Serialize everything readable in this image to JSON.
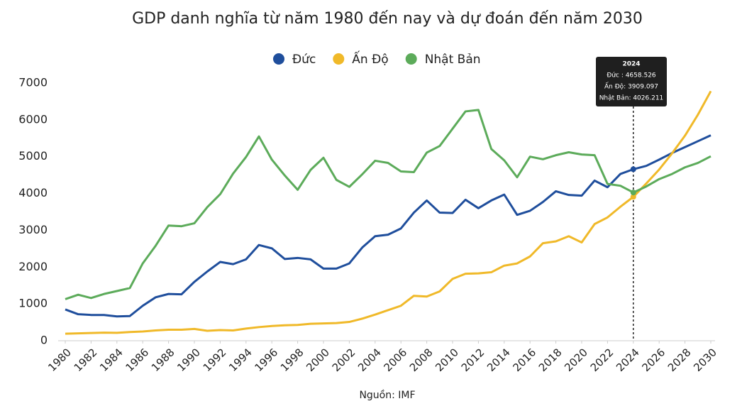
{
  "chart_data": {
    "type": "line",
    "title": "GDP danh nghĩa từ năm 1980 đến nay và dự đoán đến năm 2030",
    "source": "Nguồn: IMF",
    "legend": "top",
    "x": [
      1980,
      1981,
      1982,
      1983,
      1984,
      1985,
      1986,
      1987,
      1988,
      1989,
      1990,
      1991,
      1992,
      1993,
      1994,
      1995,
      1996,
      1997,
      1998,
      1999,
      2000,
      2001,
      2002,
      2003,
      2004,
      2005,
      2006,
      2007,
      2008,
      2009,
      2010,
      2011,
      2012,
      2013,
      2014,
      2015,
      2016,
      2017,
      2018,
      2019,
      2020,
      2021,
      2022,
      2023,
      2024,
      2025,
      2026,
      2027,
      2028,
      2029,
      2030
    ],
    "xlim": [
      1980,
      2030
    ],
    "xticks": [
      1980,
      1982,
      1984,
      1986,
      1988,
      1990,
      1992,
      1994,
      1996,
      1998,
      2000,
      2002,
      2004,
      2006,
      2008,
      2010,
      2012,
      2014,
      2016,
      2018,
      2020,
      2022,
      2024,
      2026,
      2028,
      2030
    ],
    "ylim": [
      0,
      7000
    ],
    "yticks": [
      0,
      1000,
      2000,
      3000,
      4000,
      5000,
      6000,
      7000
    ],
    "series": [
      {
        "name": "Đức",
        "color": "#1f4e9c",
        "values": [
          850,
          720,
          700,
          700,
          660,
          670,
          950,
          1180,
          1270,
          1260,
          1600,
          1880,
          2140,
          2080,
          2210,
          2600,
          2510,
          2220,
          2250,
          2210,
          1960,
          1960,
          2100,
          2530,
          2840,
          2880,
          3050,
          3480,
          3810,
          3480,
          3470,
          3830,
          3600,
          3810,
          3970,
          3420,
          3530,
          3770,
          4060,
          3960,
          3940,
          4350,
          4170,
          4530,
          4658.526,
          4750,
          4920,
          5100,
          5260,
          5420,
          5580
        ]
      },
      {
        "name": "Ấn Độ",
        "color": "#f0b929",
        "values": [
          190,
          200,
          210,
          220,
          215,
          235,
          250,
          280,
          300,
          300,
          320,
          270,
          290,
          280,
          330,
          370,
          400,
          420,
          430,
          460,
          470,
          480,
          510,
          600,
          710,
          830,
          950,
          1220,
          1200,
          1340,
          1680,
          1820,
          1830,
          1860,
          2040,
          2100,
          2290,
          2650,
          2700,
          2840,
          2670,
          3170,
          3350,
          3640,
          3909.097,
          4270,
          4650,
          5090,
          5570,
          6140,
          6780
        ]
      },
      {
        "name": "Nhật Bản",
        "color": "#5cab5a",
        "values": [
          1130,
          1250,
          1160,
          1270,
          1350,
          1430,
          2100,
          2580,
          3130,
          3110,
          3190,
          3630,
          3980,
          4540,
          4990,
          5550,
          4920,
          4490,
          4100,
          4640,
          4970,
          4370,
          4180,
          4520,
          4890,
          4830,
          4600,
          4580,
          5110,
          5290,
          5760,
          6230,
          6270,
          5210,
          4900,
          4440,
          5000,
          4930,
          5040,
          5120,
          5060,
          5040,
          4260,
          4210,
          4026.211,
          4190,
          4390,
          4530,
          4710,
          4830,
          5010
        ]
      }
    ],
    "tooltip": {
      "title": "2024",
      "lines": [
        "Đức : 4658.526",
        "Ấn Độ: 3909.097",
        "Nhật Bản: 4026.211"
      ]
    }
  }
}
